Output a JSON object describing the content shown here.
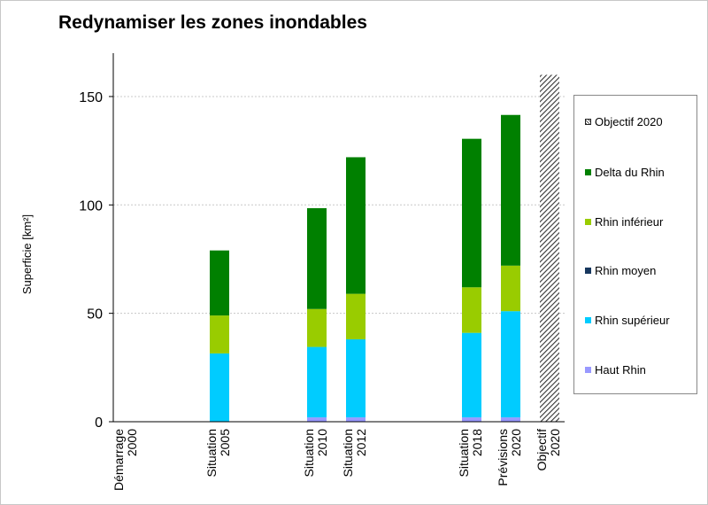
{
  "chart_data": {
    "type": "bar",
    "stacked": true,
    "title": "Redynamiser les zones inondables",
    "ylabel": "Superficie [km²]",
    "xlabel": "",
    "ylim": [
      0,
      170
    ],
    "yticks": [
      0,
      50,
      100,
      150
    ],
    "grid": true,
    "legend_position": "right",
    "categories": [
      [
        "Démarrage",
        "2000"
      ],
      [
        "Situation",
        "2005"
      ],
      [
        "Situation",
        "2010"
      ],
      [
        "Situation",
        "2012"
      ],
      [
        "Situation",
        "2018"
      ],
      [
        "Prévisions",
        "2020"
      ],
      [
        "Objectif",
        "2020"
      ]
    ],
    "series": [
      {
        "name": "Haut Rhin",
        "color": "#9999ff",
        "values": [
          0,
          0,
          2,
          2,
          2,
          2,
          0
        ]
      },
      {
        "name": "Rhin supérieur",
        "color": "#00ccff",
        "values": [
          0,
          31.5,
          32.5,
          36,
          39,
          49,
          0
        ]
      },
      {
        "name": "Rhin moyen",
        "color": "#17375e",
        "values": [
          0,
          0,
          0,
          0,
          0,
          0,
          0
        ]
      },
      {
        "name": "Rhin inférieur",
        "color": "#99cc00",
        "values": [
          0,
          17.5,
          17.5,
          21,
          21,
          21,
          0
        ]
      },
      {
        "name": "Delta du Rhin",
        "color": "#008000",
        "values": [
          0,
          30,
          46.5,
          63,
          68.5,
          69.5,
          0
        ]
      },
      {
        "name": "Objectif 2020",
        "color": "#333333",
        "pattern": "hatch",
        "values": [
          0,
          0,
          0,
          0,
          0,
          0,
          160
        ]
      }
    ],
    "legend_order": [
      "Objectif 2020",
      "Delta du Rhin",
      "Rhin inférieur",
      "Rhin moyen",
      "Rhin supérieur",
      "Haut Rhin"
    ]
  }
}
